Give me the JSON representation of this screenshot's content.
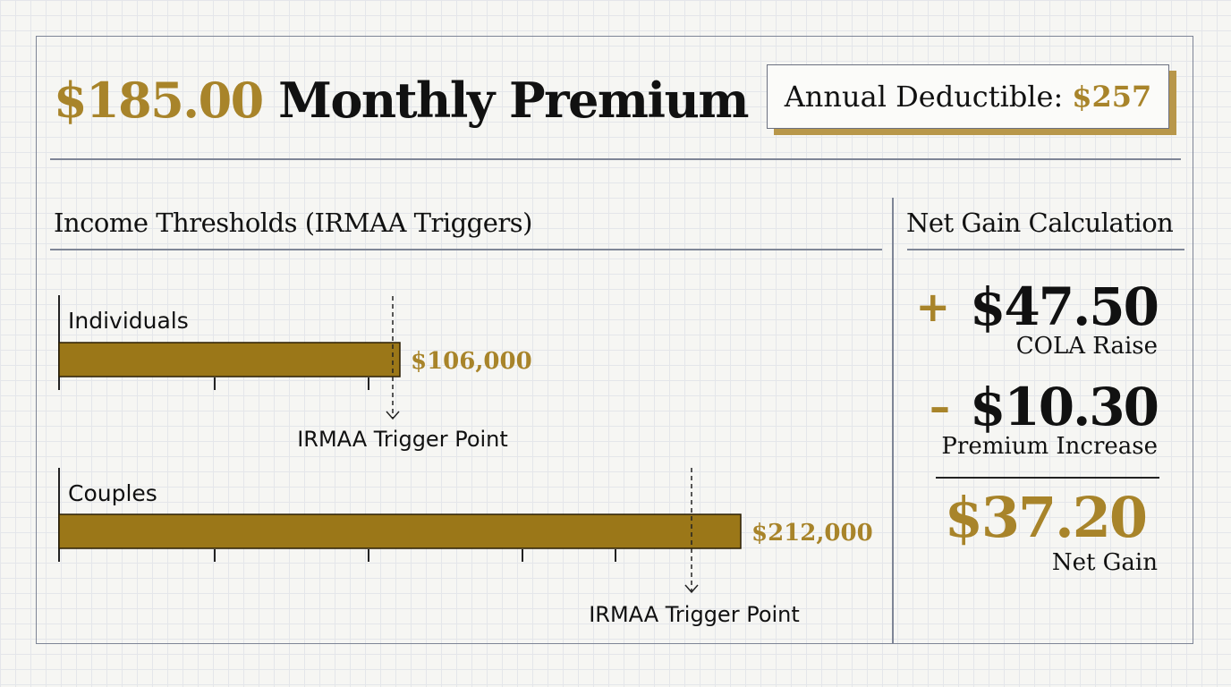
{
  "header": {
    "premium_amount": "$185.00",
    "premium_label": "Monthly Premium",
    "deductible_label": "Annual Deductible:",
    "deductible_value": "$257"
  },
  "thresholds": {
    "title": "Income Thresholds (IRMAA Triggers)"
  },
  "net_gain": {
    "title": "Net Gain Calculation",
    "cola_sign": "+",
    "cola_amount": "$47.50",
    "cola_label": "COLA Raise",
    "premium_sign": "–",
    "premium_amount": "$10.30",
    "premium_label": "Premium Increase",
    "net_amount": "$37.20",
    "net_label": "Net Gain"
  },
  "chart_data": {
    "type": "bar",
    "orientation": "horizontal",
    "title": "Income Thresholds (IRMAA Triggers)",
    "bar_color": "#9b7718",
    "value_color": "#a8842a",
    "series": [
      {
        "name": "Individuals",
        "value": 106000,
        "value_label": "$106,000",
        "trigger_label": "IRMAA Trigger Point"
      },
      {
        "name": "Couples",
        "value": 212000,
        "value_label": "$212,000",
        "trigger_label": "IRMAA Trigger Point"
      }
    ]
  }
}
